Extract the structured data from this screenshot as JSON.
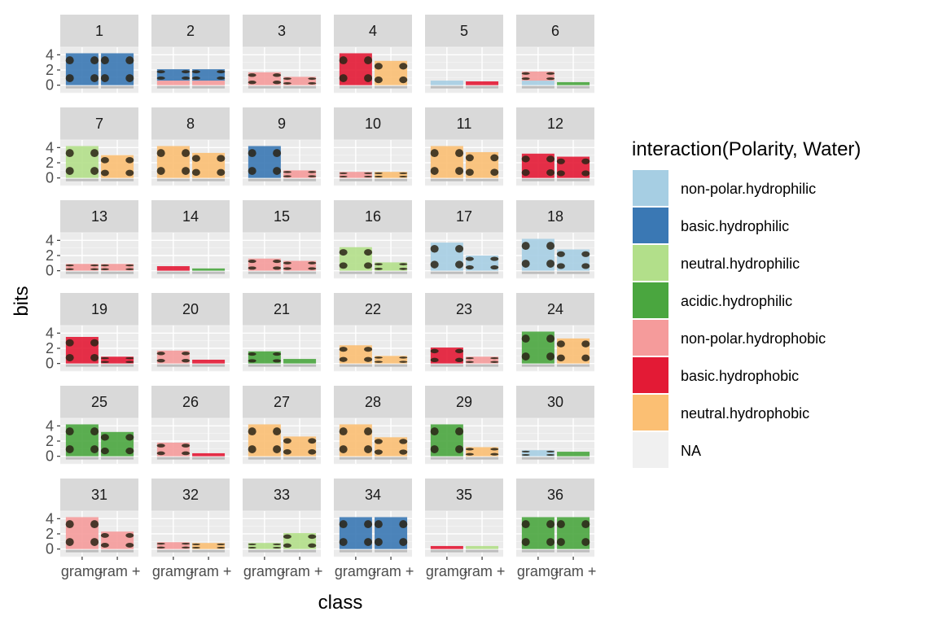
{
  "chart_data": {
    "type": "bar",
    "facet_by": "position",
    "facet_labels": [
      "1",
      "2",
      "3",
      "4",
      "5",
      "6",
      "7",
      "8",
      "9",
      "10",
      "11",
      "12",
      "13",
      "14",
      "15",
      "16",
      "17",
      "18",
      "19",
      "20",
      "21",
      "22",
      "23",
      "24",
      "25",
      "26",
      "27",
      "28",
      "29",
      "30",
      "31",
      "32",
      "33",
      "34",
      "35",
      "36"
    ],
    "facet_layout": "6 columns x 6 rows",
    "categories": [
      "gram -",
      "gram +"
    ],
    "xlabel": "class",
    "ylabel": "bits",
    "ylim": [
      -1,
      5
    ],
    "yticks": [
      0,
      2,
      4
    ],
    "legend": {
      "title": "interaction(Polarity, Water)",
      "position": "right",
      "entries": [
        {
          "key": "nph",
          "label": "non-polar.hydrophilic",
          "color": "#a6cee3"
        },
        {
          "key": "bph",
          "label": "basic.hydrophilic",
          "color": "#3a78b4"
        },
        {
          "key": "uph",
          "label": "neutral.hydrophilic",
          "color": "#b2df8a"
        },
        {
          "key": "aph",
          "label": "acidic.hydrophilic",
          "color": "#4aa63f"
        },
        {
          "key": "npo",
          "label": "non-polar.hydrophobic",
          "color": "#f59b9b"
        },
        {
          "key": "bpo",
          "label": "basic.hydrophobic",
          "color": "#e31a35"
        },
        {
          "key": "upo",
          "label": "neutral.hydrophobic",
          "color": "#fbbf73"
        },
        {
          "key": "na",
          "label": "NA",
          "color": "#f0f0f0"
        }
      ]
    },
    "panels": [
      {
        "gram_minus": [
          [
            "bph",
            4.2
          ]
        ],
        "gram_plus": [
          [
            "bph",
            4.2
          ]
        ]
      },
      {
        "gram_minus": [
          [
            "npo",
            0.6
          ],
          [
            "bph",
            1.5
          ]
        ],
        "gram_plus": [
          [
            "npo",
            0.6
          ],
          [
            "bph",
            1.5
          ]
        ]
      },
      {
        "gram_minus": [
          [
            "npo",
            1.7
          ]
        ],
        "gram_plus": [
          [
            "npo",
            1.1
          ]
        ]
      },
      {
        "gram_minus": [
          [
            "bpo",
            4.2
          ]
        ],
        "gram_plus": [
          [
            "upo",
            3.2
          ]
        ]
      },
      {
        "gram_minus": [
          [
            "nph",
            0.6
          ]
        ],
        "gram_plus": [
          [
            "bpo",
            0.5
          ]
        ]
      },
      {
        "gram_minus": [
          [
            "nph",
            0.6
          ],
          [
            "npo",
            1.2
          ]
        ],
        "gram_plus": [
          [
            "aph",
            0.4
          ]
        ]
      },
      {
        "gram_minus": [
          [
            "uph",
            4.2
          ]
        ],
        "gram_plus": [
          [
            "upo",
            3.0
          ]
        ]
      },
      {
        "gram_minus": [
          [
            "upo",
            4.2
          ]
        ],
        "gram_plus": [
          [
            "upo",
            3.3
          ]
        ]
      },
      {
        "gram_minus": [
          [
            "bph",
            4.2
          ]
        ],
        "gram_plus": [
          [
            "npo",
            1.0
          ]
        ]
      },
      {
        "gram_minus": [
          [
            "npo",
            0.8
          ]
        ],
        "gram_plus": [
          [
            "upo",
            0.8
          ]
        ]
      },
      {
        "gram_minus": [
          [
            "upo",
            4.2
          ]
        ],
        "gram_plus": [
          [
            "upo",
            3.4
          ]
        ]
      },
      {
        "gram_minus": [
          [
            "bpo",
            3.2
          ]
        ],
        "gram_plus": [
          [
            "bpo",
            2.8
          ]
        ]
      },
      {
        "gram_minus": [
          [
            "npo",
            0.9
          ]
        ],
        "gram_plus": [
          [
            "npo",
            0.9
          ]
        ]
      },
      {
        "gram_minus": [
          [
            "bpo",
            0.6
          ]
        ],
        "gram_plus": [
          [
            "aph",
            0.3
          ]
        ]
      },
      {
        "gram_minus": [
          [
            "npo",
            1.6
          ]
        ],
        "gram_plus": [
          [
            "npo",
            1.3
          ]
        ]
      },
      {
        "gram_minus": [
          [
            "uph",
            3.1
          ]
        ],
        "gram_plus": [
          [
            "uph",
            1.1
          ]
        ]
      },
      {
        "gram_minus": [
          [
            "nph",
            3.7
          ]
        ],
        "gram_plus": [
          [
            "nph",
            2.0
          ]
        ]
      },
      {
        "gram_minus": [
          [
            "nph",
            4.2
          ]
        ],
        "gram_plus": [
          [
            "nph",
            2.8
          ]
        ]
      },
      {
        "gram_minus": [
          [
            "bpo",
            3.5
          ]
        ],
        "gram_plus": [
          [
            "bpo",
            0.9
          ]
        ]
      },
      {
        "gram_minus": [
          [
            "npo",
            1.7
          ]
        ],
        "gram_plus": [
          [
            "bpo",
            0.5
          ]
        ]
      },
      {
        "gram_minus": [
          [
            "aph",
            1.6
          ]
        ],
        "gram_plus": [
          [
            "aph",
            0.6
          ]
        ]
      },
      {
        "gram_minus": [
          [
            "upo",
            2.4
          ]
        ],
        "gram_plus": [
          [
            "upo",
            1.0
          ]
        ]
      },
      {
        "gram_minus": [
          [
            "bpo",
            2.1
          ]
        ],
        "gram_plus": [
          [
            "npo",
            0.9
          ]
        ]
      },
      {
        "gram_minus": [
          [
            "aph",
            4.2
          ]
        ],
        "gram_plus": [
          [
            "upo",
            3.3
          ]
        ]
      },
      {
        "gram_minus": [
          [
            "aph",
            4.2
          ]
        ],
        "gram_plus": [
          [
            "aph",
            3.2
          ]
        ]
      },
      {
        "gram_minus": [
          [
            "npo",
            1.8
          ]
        ],
        "gram_plus": [
          [
            "bpo",
            0.4
          ]
        ]
      },
      {
        "gram_minus": [
          [
            "upo",
            4.2
          ]
        ],
        "gram_plus": [
          [
            "upo",
            2.6
          ]
        ]
      },
      {
        "gram_minus": [
          [
            "upo",
            4.2
          ]
        ],
        "gram_plus": [
          [
            "upo",
            2.5
          ]
        ]
      },
      {
        "gram_minus": [
          [
            "aph",
            4.2
          ]
        ],
        "gram_plus": [
          [
            "upo",
            1.2
          ]
        ]
      },
      {
        "gram_minus": [
          [
            "nph",
            0.8
          ]
        ],
        "gram_plus": [
          [
            "aph",
            0.6
          ]
        ]
      },
      {
        "gram_minus": [
          [
            "npo",
            4.2
          ]
        ],
        "gram_plus": [
          [
            "npo",
            2.3
          ]
        ]
      },
      {
        "gram_minus": [
          [
            "npo",
            0.9
          ]
        ],
        "gram_plus": [
          [
            "upo",
            0.8
          ]
        ]
      },
      {
        "gram_minus": [
          [
            "uph",
            0.8
          ]
        ],
        "gram_plus": [
          [
            "uph",
            2.1
          ]
        ]
      },
      {
        "gram_minus": [
          [
            "bph",
            4.2
          ]
        ],
        "gram_plus": [
          [
            "bph",
            4.2
          ]
        ]
      },
      {
        "gram_minus": [
          [
            "bpo",
            0.4
          ]
        ],
        "gram_plus": [
          [
            "uph",
            0.4
          ]
        ]
      },
      {
        "gram_minus": [
          [
            "aph",
            4.2
          ]
        ],
        "gram_plus": [
          [
            "aph",
            4.2
          ]
        ]
      }
    ]
  }
}
